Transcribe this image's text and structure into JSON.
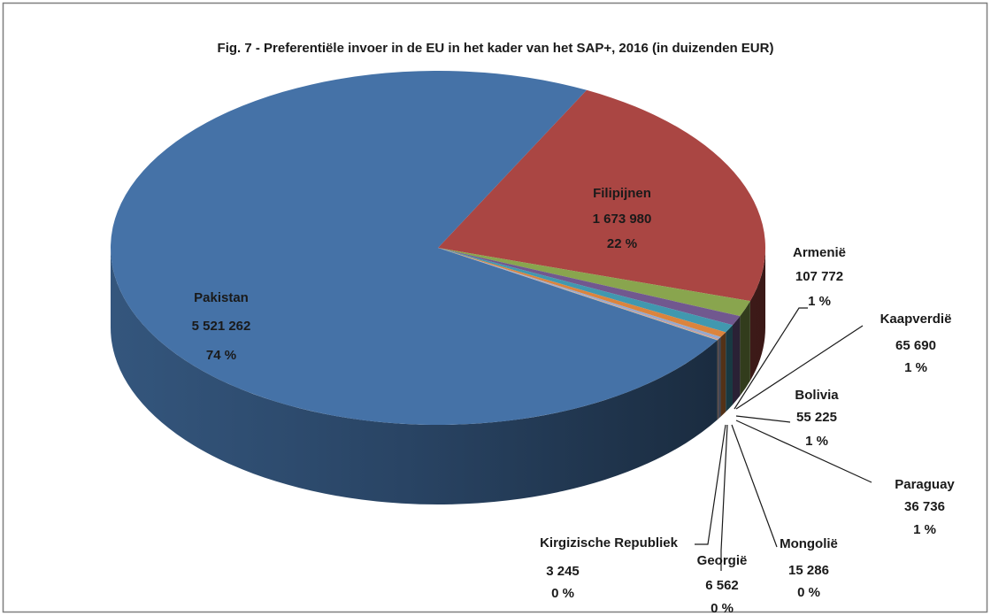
{
  "chart_data": {
    "type": "pie",
    "title": "Fig. 7 - Preferentiële invoer in de EU in het kader van het SAP+, 2016 (in duizenden EUR)",
    "categories": [
      "Filipijnen",
      "Armenië",
      "Kaapverdië",
      "Bolivia",
      "Paraguay",
      "Mongolië",
      "Georgië",
      "Kirgizische  Republiek",
      "Pakistan"
    ],
    "values": [
      1673980,
      107772,
      65690,
      55225,
      36736,
      15286,
      6562,
      3245,
      5521262
    ],
    "value_labels": [
      "1 673 980",
      "107 772",
      "65 690",
      "55 225",
      "36 736",
      "15 286",
      "6 562",
      "3 245",
      "5 521 262"
    ],
    "percent_labels": [
      "22 %",
      "1 %",
      "1 %",
      "1 %",
      "1 %",
      "0 %",
      "0 %",
      "0 %",
      "74 %"
    ],
    "colors": [
      "#aa4643",
      "#89a54e",
      "#71588f",
      "#4198af",
      "#db843d",
      "#93a9cf",
      "#d19392",
      "#b9cd96",
      "#4572a7"
    ]
  }
}
